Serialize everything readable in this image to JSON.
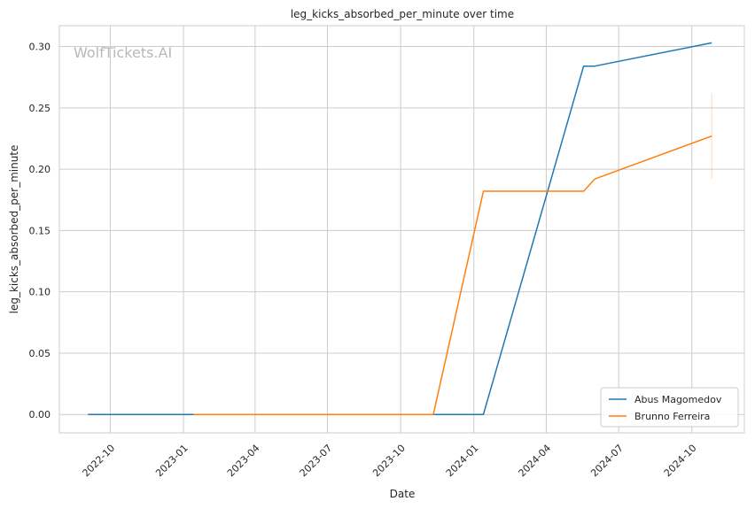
{
  "watermark": "WolfTickets.AI",
  "chart_data": {
    "type": "line",
    "title": "leg_kicks_absorbed_per_minute over time",
    "xlabel": "Date",
    "ylabel": "leg_kicks_absorbed_per_minute",
    "x_axis": "date",
    "xlim": [
      "2022-07-29",
      "2024-12-06"
    ],
    "ylim": [
      -0.015,
      0.317
    ],
    "x_ticks": [
      "2022-10",
      "2023-01",
      "2023-04",
      "2023-07",
      "2023-10",
      "2024-01",
      "2024-04",
      "2024-07",
      "2024-10"
    ],
    "y_ticks": [
      0.0,
      0.05,
      0.1,
      0.15,
      0.2,
      0.25,
      0.3
    ],
    "grid": true,
    "legend_position": "bottom-right",
    "series": [
      {
        "name": "Abus Magomedov",
        "color": "#1f77b4",
        "points": [
          {
            "x": "2022-09-03",
            "y": 0.0
          },
          {
            "x": "2024-01-13",
            "y": 0.0
          },
          {
            "x": "2024-05-18",
            "y": 0.284
          },
          {
            "x": "2024-06-01",
            "y": 0.284
          },
          {
            "x": "2024-10-26",
            "y": 0.303
          }
        ]
      },
      {
        "name": "Brunno Ferreira",
        "color": "#ff7f0e",
        "points": [
          {
            "x": "2023-01-14",
            "y": 0.0
          },
          {
            "x": "2023-11-11",
            "y": 0.0
          },
          {
            "x": "2024-01-13",
            "y": 0.182
          },
          {
            "x": "2024-05-18",
            "y": 0.182
          },
          {
            "x": "2024-06-01",
            "y": 0.192
          },
          {
            "x": "2024-10-26",
            "y": 0.227
          }
        ],
        "band": {
          "x": "2024-10-26",
          "low": 0.192,
          "high": 0.262
        }
      }
    ]
  }
}
